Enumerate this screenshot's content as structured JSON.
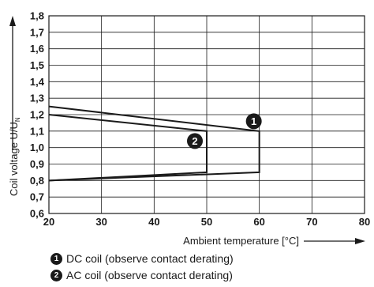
{
  "chart_data": {
    "type": "line",
    "title": "",
    "xlabel": "Ambient temperature [°C]",
    "ylabel": "Coil voltage U/U",
    "ylabel_sub": "N",
    "xlim": [
      20,
      80
    ],
    "ylim": [
      0.6,
      1.8
    ],
    "xticks": [
      "20",
      "30",
      "40",
      "50",
      "60",
      "70",
      "80"
    ],
    "yticks": [
      "0,6",
      "0,7",
      "0,8",
      "0,9",
      "1,0",
      "1,1",
      "1,2",
      "1,3",
      "1,4",
      "1,5",
      "1,6",
      "1,7",
      "1,8"
    ],
    "grid": true,
    "series": [
      {
        "name": "1",
        "x": [
          20,
          60,
          60,
          20
        ],
        "y": [
          1.25,
          1.1,
          0.85,
          0.8
        ]
      },
      {
        "name": "2",
        "x": [
          20,
          50,
          50,
          20
        ],
        "y": [
          1.2,
          1.1,
          0.85,
          0.8
        ]
      }
    ]
  },
  "legend": {
    "items": [
      {
        "number": "1",
        "label": "DC coil (observe contact derating)"
      },
      {
        "number": "2",
        "label": "AC coil (observe contact derating)"
      }
    ]
  }
}
